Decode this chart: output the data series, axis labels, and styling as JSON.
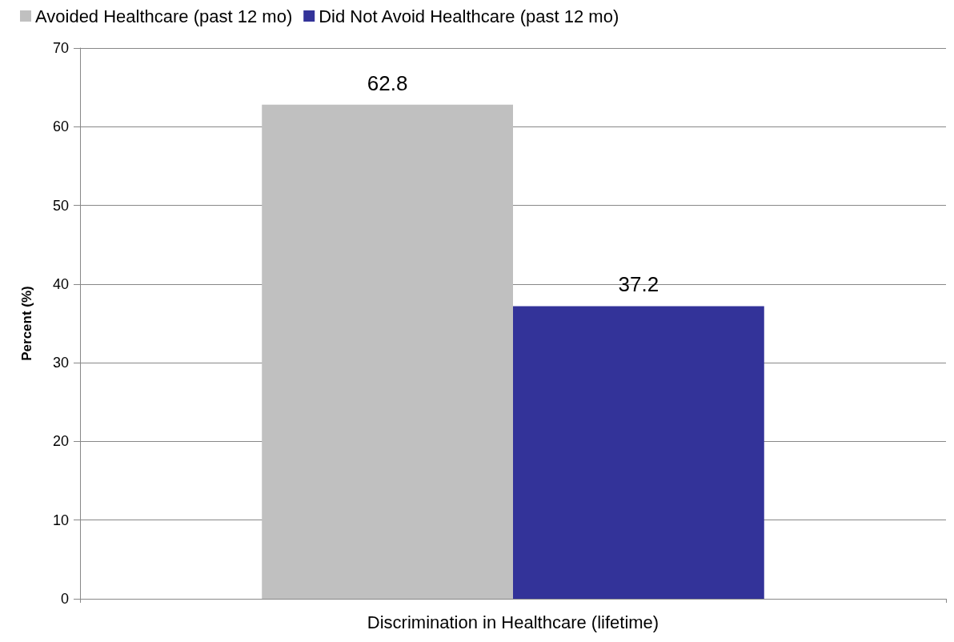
{
  "chart_data": {
    "type": "bar",
    "ylabel": "Percent (%)",
    "categories": [
      "Discrimination in Healthcare (lifetime)"
    ],
    "series": [
      {
        "name": "Avoided Healthcare (past 12 mo)",
        "color": "#c0c0c0",
        "values": [
          62.8
        ]
      },
      {
        "name": "Did Not Avoid Healthcare (past 12 mo)",
        "color": "#333399",
        "values": [
          37.2
        ]
      }
    ],
    "ylim": [
      0,
      70
    ],
    "yticks": [
      0,
      10,
      20,
      30,
      40,
      50,
      60,
      70
    ],
    "grid": "y",
    "legend": "top",
    "data_labels": true
  }
}
